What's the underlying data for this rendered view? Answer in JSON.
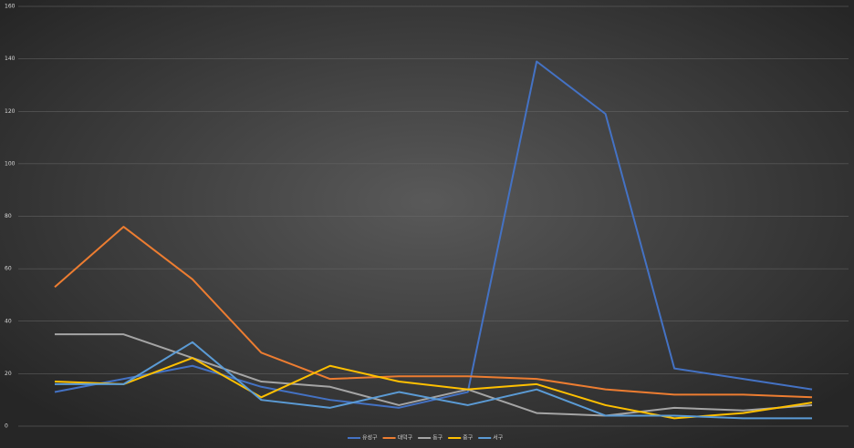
{
  "chart_data": {
    "type": "line",
    "series": [
      {
        "name": "유성구",
        "color": "#4472c4",
        "values": [
          13,
          18,
          23,
          15,
          10,
          7,
          13,
          139,
          119,
          22,
          18,
          14
        ]
      },
      {
        "name": "대덕구",
        "color": "#ed7d31",
        "values": [
          53,
          76,
          56,
          28,
          18,
          19,
          19,
          18,
          14,
          12,
          12,
          11
        ]
      },
      {
        "name": "동구",
        "color": "#a5a5a5",
        "values": [
          35,
          35,
          26,
          17,
          15,
          8,
          14,
          5,
          4,
          7,
          6,
          8
        ]
      },
      {
        "name": "중구",
        "color": "#ffc000",
        "values": [
          17,
          16,
          26,
          11,
          23,
          17,
          14,
          16,
          8,
          3,
          5,
          9
        ]
      },
      {
        "name": "서구",
        "color": "#5b9bd5",
        "values": [
          16,
          16,
          32,
          10,
          7,
          13,
          8,
          14,
          4,
          4,
          3,
          3
        ]
      }
    ],
    "ylim": [
      0,
      160
    ],
    "yticks": [
      0,
      20,
      40,
      60,
      80,
      100,
      120,
      140,
      160
    ],
    "grid": true,
    "legend": "bottom"
  }
}
